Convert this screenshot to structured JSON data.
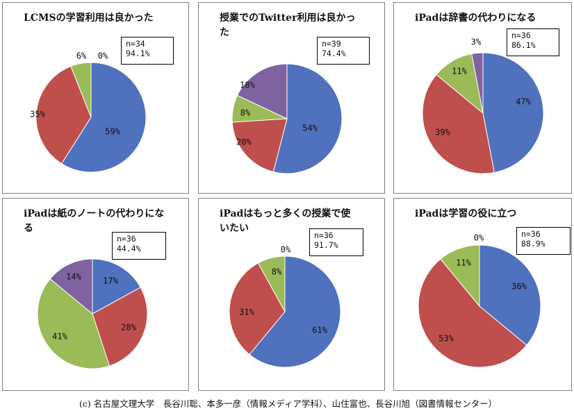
{
  "credit": "(c) 名古屋文理大学　長谷川聡、本多一彦（情報メディア学科）、山住富也、長谷川旭（図書情報センター）",
  "colors": {
    "blue": "#4F71BE",
    "red": "#BF4F4D",
    "green": "#9BBB58",
    "purple": "#7F63A1"
  },
  "chart_data": [
    {
      "type": "pie",
      "title": "LCMSの学習利用は良かった",
      "n_label": "n=34",
      "pct_label": "94.1%",
      "values": [
        59,
        35,
        6,
        0
      ],
      "labels": [
        "59%",
        "35%",
        "6%",
        "0%"
      ],
      "colors": [
        "blue",
        "red",
        "green",
        "purple"
      ]
    },
    {
      "type": "pie",
      "title": "授業でのTwitter利用は良かった",
      "n_label": "n=39",
      "pct_label": "74.4%",
      "values": [
        54,
        20,
        8,
        18
      ],
      "labels": [
        "54%",
        "20%",
        "8%",
        "18%"
      ],
      "colors": [
        "blue",
        "red",
        "green",
        "purple"
      ]
    },
    {
      "type": "pie",
      "title": "iPadは辞書の代わりになる",
      "n_label": "n=36",
      "pct_label": "86.1%",
      "values": [
        47,
        39,
        11,
        3
      ],
      "labels": [
        "47%",
        "39%",
        "11%",
        "3%"
      ],
      "colors": [
        "blue",
        "red",
        "green",
        "purple"
      ]
    },
    {
      "type": "pie",
      "title": "iPadは紙のノートの代わりになる",
      "n_label": "n=36",
      "pct_label": "44.4%",
      "values": [
        17,
        28,
        41,
        14
      ],
      "labels": [
        "17%",
        "28%",
        "41%",
        "14%"
      ],
      "colors": [
        "blue",
        "red",
        "green",
        "purple"
      ]
    },
    {
      "type": "pie",
      "title": "iPadはもっと多くの授業で使いたい",
      "n_label": "n=36",
      "pct_label": "91.7%",
      "values": [
        61,
        31,
        8,
        0
      ],
      "labels": [
        "61%",
        "31%",
        "8%",
        "0%"
      ],
      "colors": [
        "blue",
        "red",
        "green",
        "purple"
      ]
    },
    {
      "type": "pie",
      "title": "iPadは学習の役に立つ",
      "n_label": "n=36",
      "pct_label": "88.9%",
      "values": [
        36,
        53,
        11,
        0
      ],
      "labels": [
        "36%",
        "53%",
        "11%",
        "0%"
      ],
      "colors": [
        "blue",
        "red",
        "green",
        "purple"
      ]
    }
  ]
}
